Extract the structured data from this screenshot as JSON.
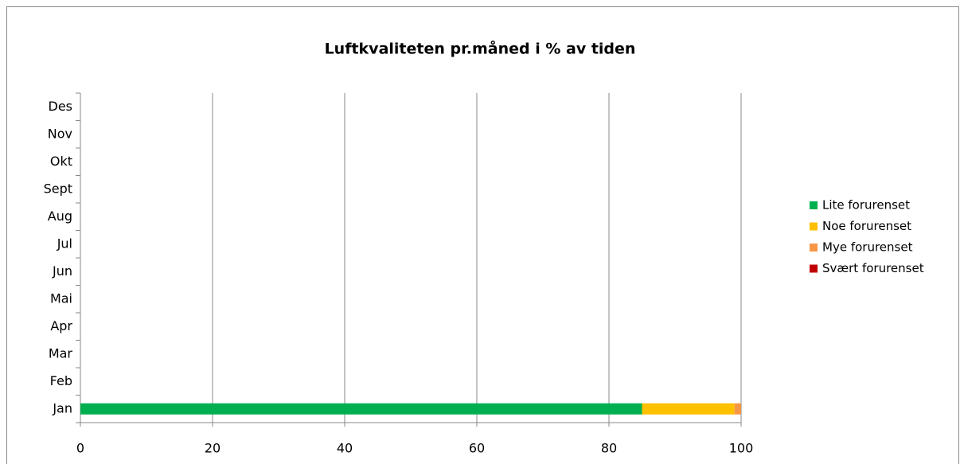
{
  "chart_data": {
    "type": "stacked-barh",
    "title": "Luftkvaliteten pr.måned i % av tiden",
    "categories": [
      "Jan",
      "Feb",
      "Mar",
      "Apr",
      "Mai",
      "Jun",
      "Jul",
      "Aug",
      "Sept",
      "Okt",
      "Nov",
      "Des"
    ],
    "series": [
      {
        "name": "Lite forurenset",
        "color": "#00b050",
        "values": [
          85,
          null,
          null,
          null,
          null,
          null,
          null,
          null,
          null,
          null,
          null,
          null
        ]
      },
      {
        "name": "Noe forurenset",
        "color": "#ffc000",
        "values": [
          14,
          null,
          null,
          null,
          null,
          null,
          null,
          null,
          null,
          null,
          null,
          null
        ]
      },
      {
        "name": "Mye forurenset",
        "color": "#f79646",
        "values": [
          1,
          null,
          null,
          null,
          null,
          null,
          null,
          null,
          null,
          null,
          null,
          null
        ]
      },
      {
        "name": "Svært forurenset",
        "color": "#c00000",
        "values": [
          0,
          null,
          null,
          null,
          null,
          null,
          null,
          null,
          null,
          null,
          null,
          null
        ]
      }
    ],
    "xlim": [
      0,
      100
    ],
    "xticks": [
      0,
      20,
      40,
      60,
      80,
      100
    ],
    "grid": true,
    "legend": "right"
  }
}
